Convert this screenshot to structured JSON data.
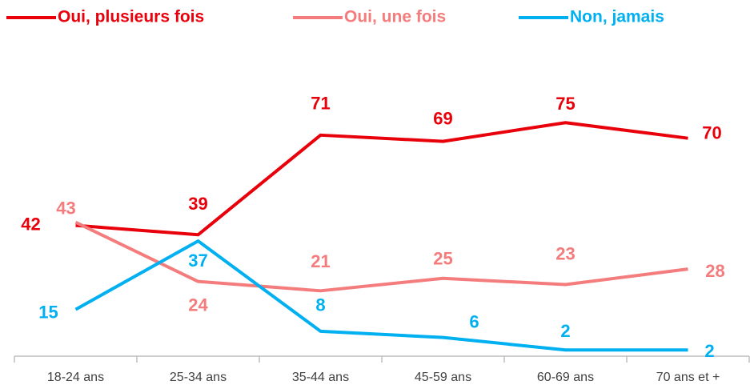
{
  "chart_data": {
    "type": "line",
    "categories": [
      "18-24 ans",
      "25-34 ans",
      "35-44 ans",
      "45-59 ans",
      "60-69 ans",
      "70 ans et +"
    ],
    "series": [
      {
        "name": "Oui, plusieurs fois",
        "color": "#e8000b",
        "values": [
          42,
          39,
          71,
          69,
          75,
          70
        ]
      },
      {
        "name": "Oui, une fois",
        "color": "#f47c7c",
        "values": [
          43,
          24,
          21,
          25,
          23,
          28
        ]
      },
      {
        "name": "Non, jamais",
        "color": "#00b0f0",
        "values": [
          15,
          37,
          8,
          6,
          2,
          2
        ]
      }
    ],
    "ylim": [
      0,
      100
    ],
    "legend": "top"
  }
}
